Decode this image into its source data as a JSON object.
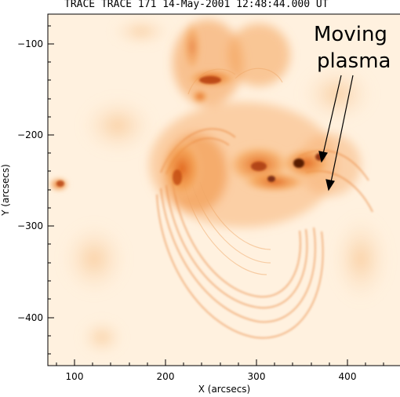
{
  "figure": {
    "title": "TRACE TRACE 171 14-May-2001 12:48:44.000 UT",
    "annotation": {
      "line1": "Moving",
      "line2": "plasma"
    },
    "palette": {
      "background": "#fff1df",
      "mid": "#f6a24d",
      "bright": "#e0621a",
      "dark": "#5a1c05"
    }
  },
  "axes": {
    "x_label": "X (arcsecs)",
    "y_label": "Y (arcsecs)",
    "x_ticks": [
      "100",
      "200",
      "300",
      "400"
    ],
    "y_ticks": [
      "−100",
      "−200",
      "−300",
      "−400"
    ],
    "x_range": [
      70,
      455
    ],
    "y_range": [
      -453,
      -70
    ]
  }
}
